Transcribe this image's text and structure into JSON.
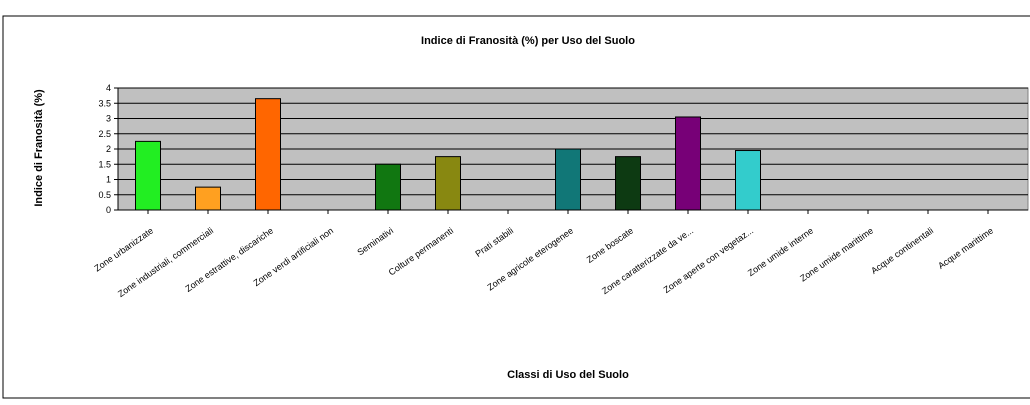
{
  "chart_data": {
    "type": "bar",
    "title": "Indice di Franosità (%) per Uso del Suolo",
    "xlabel": "Classi di Uso del Suolo",
    "ylabel": "Indice di Franosità (%)",
    "ylim": [
      0,
      4
    ],
    "yticks": [
      "0",
      "0.5",
      "1",
      "1.5",
      "2",
      "2.5",
      "3",
      "3.5",
      "4"
    ],
    "grid": true,
    "legend": "none",
    "categories": [
      "Zone urbanizzate",
      "Zone industriali, commerciali",
      "Zone estrattive, discariche",
      "Zone verdi artificiali non",
      "Seminativi",
      "Colture permanenti",
      "Prati stabili",
      "Zone agricole eterogenee",
      "Zone boscate",
      "Zone caratterizzate da ve...",
      "Zone aperte con vegetaz...",
      "Zone umide interne",
      "Zone umide marittime",
      "Acque continentali",
      "Acque marittime"
    ],
    "values": [
      2.25,
      0.75,
      3.65,
      0,
      1.5,
      1.75,
      0,
      2.0,
      1.75,
      3.05,
      1.95,
      0,
      0,
      0,
      0
    ],
    "colors": [
      "#22ee22",
      "#ffa020",
      "#ff6600",
      "#888888",
      "#117711",
      "#888811",
      "#888888",
      "#117777",
      "#0d3a12",
      "#770077",
      "#33cccc",
      "#888888",
      "#888888",
      "#888888",
      "#888888"
    ],
    "plot_background": "#c0c0c0"
  }
}
